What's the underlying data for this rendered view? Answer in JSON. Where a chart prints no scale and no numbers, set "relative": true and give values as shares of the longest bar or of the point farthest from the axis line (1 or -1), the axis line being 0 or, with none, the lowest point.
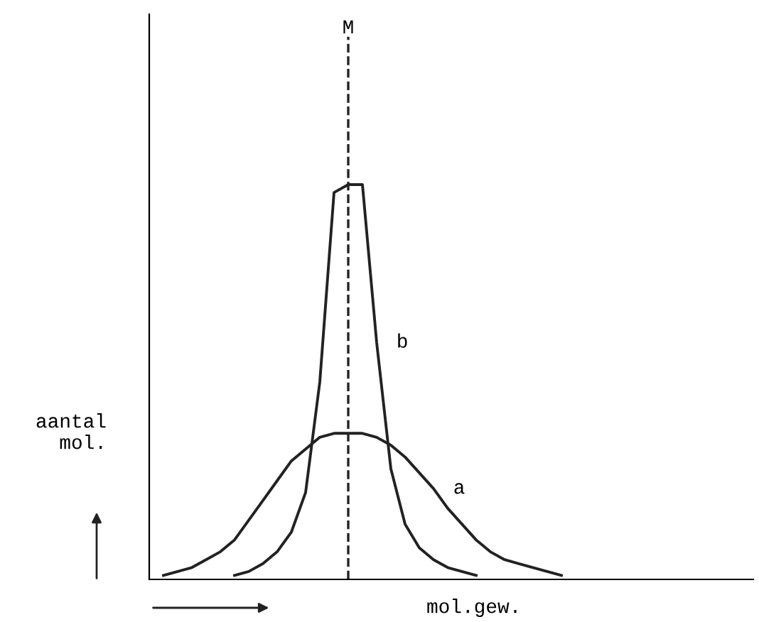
{
  "chart_data": {
    "type": "line",
    "relative": true,
    "xlabel": "mol.gew.",
    "ylabel": "aantal\nmol.",
    "categories": [
      null,
      null,
      null,
      null,
      null,
      null,
      null,
      null,
      null,
      null,
      null,
      null,
      null,
      null,
      null,
      null,
      null,
      null,
      null,
      null,
      null,
      null,
      null,
      null,
      null,
      null,
      null,
      null,
      null,
      null
    ],
    "series": [
      {
        "name": "a",
        "color": "#222222",
        "values": [
          0.01,
          0.02,
          0.03,
          0.05,
          0.07,
          0.1,
          0.15,
          0.2,
          0.25,
          0.3,
          0.33,
          0.36,
          0.37,
          0.37,
          0.37,
          0.36,
          0.34,
          0.31,
          0.27,
          0.23,
          0.18,
          0.14,
          0.1,
          0.07,
          0.05,
          0.04,
          0.03,
          0.02,
          0.01,
          null
        ]
      },
      {
        "name": "b",
        "color": "#222222",
        "values": [
          null,
          null,
          null,
          null,
          null,
          0.01,
          0.02,
          0.04,
          0.07,
          0.12,
          0.22,
          0.5,
          0.98,
          1,
          1,
          0.6,
          0.28,
          0.14,
          0.08,
          0.05,
          0.03,
          0.02,
          0.01,
          null,
          null,
          null,
          null,
          null,
          null,
          null
        ]
      }
    ],
    "annotations": [
      "M"
    ],
    "grid": false,
    "legend": false,
    "line_style": "solid"
  }
}
